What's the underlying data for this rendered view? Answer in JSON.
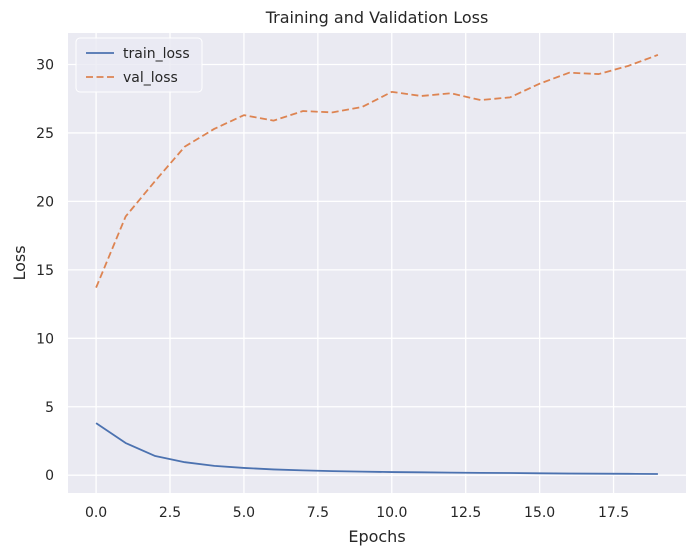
{
  "chart_data": {
    "type": "line",
    "title": "Training and Validation Loss",
    "xlabel": "Epochs",
    "ylabel": "Loss",
    "xlim": [
      -0.95,
      19.95
    ],
    "ylim": [
      -1.3,
      32.3
    ],
    "xticks": [
      0.0,
      2.5,
      5.0,
      7.5,
      10.0,
      12.5,
      15.0,
      17.5
    ],
    "xtick_labels": [
      "0.0",
      "2.5",
      "5.0",
      "7.5",
      "10.0",
      "12.5",
      "15.0",
      "17.5"
    ],
    "yticks": [
      0,
      5,
      10,
      15,
      20,
      25,
      30
    ],
    "ytick_labels": [
      "0",
      "5",
      "10",
      "15",
      "20",
      "25",
      "30"
    ],
    "grid": true,
    "legend_position": "top-left",
    "x": [
      0,
      1,
      2,
      3,
      4,
      5,
      6,
      7,
      8,
      9,
      10,
      11,
      12,
      13,
      14,
      15,
      16,
      17,
      18,
      19
    ],
    "series": [
      {
        "name": "train_loss",
        "style": "solid",
        "color": "#4c72b0",
        "values": [
          3.8,
          2.35,
          1.4,
          0.95,
          0.68,
          0.53,
          0.42,
          0.35,
          0.3,
          0.26,
          0.23,
          0.21,
          0.19,
          0.17,
          0.16,
          0.14,
          0.12,
          0.11,
          0.1,
          0.09
        ]
      },
      {
        "name": "val_loss",
        "style": "dashed",
        "color": "#dd8452",
        "values": [
          13.7,
          18.9,
          21.5,
          24.0,
          25.3,
          26.3,
          25.9,
          26.6,
          26.5,
          26.9,
          28.0,
          27.7,
          27.9,
          27.4,
          27.6,
          28.6,
          29.4,
          29.3,
          29.9,
          30.7
        ]
      }
    ]
  },
  "colors": {
    "plot_background": "#eaeaf2",
    "grid": "#ffffff",
    "text": "#262626"
  }
}
